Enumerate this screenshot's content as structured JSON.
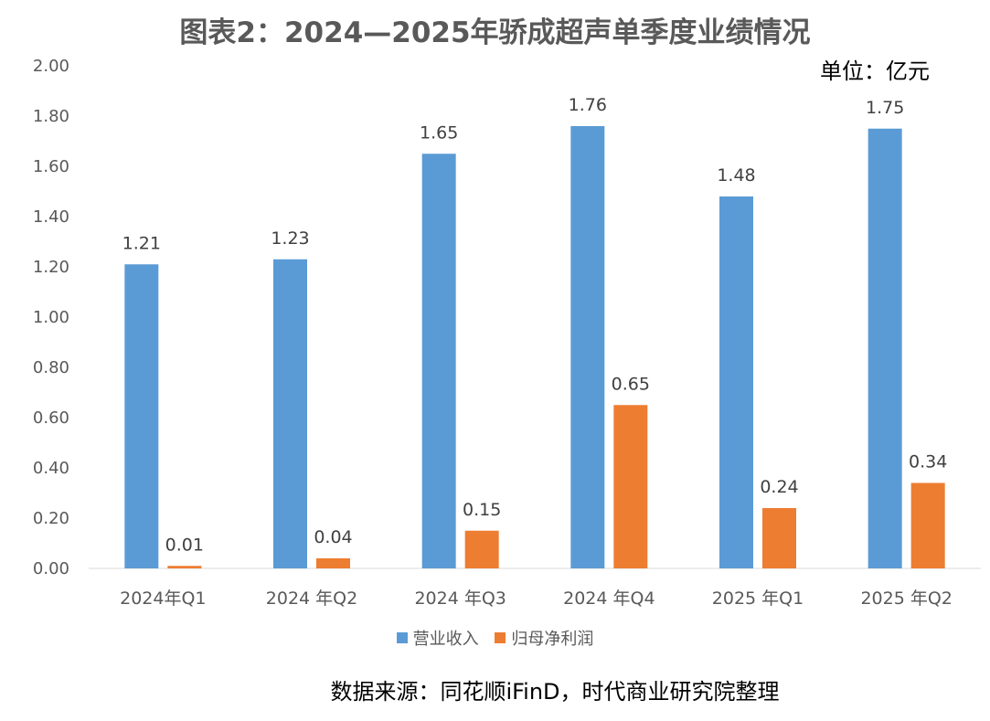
{
  "chart_data": {
    "type": "bar",
    "title": "图表2：2024—2025年骄成超声单季度业绩情况",
    "unit": "单位：亿元",
    "categories": [
      "2024年Q1",
      "2024 年Q2",
      "2024 年Q3",
      "2024 年Q4",
      "2025 年Q1",
      "2025 年Q2"
    ],
    "series": [
      {
        "name": "营业收入",
        "color": "#5B9BD5",
        "values": [
          1.21,
          1.23,
          1.65,
          1.76,
          1.48,
          1.75
        ],
        "labels": [
          "1.21",
          "1.23",
          "1.65",
          "1.76",
          "1.48",
          "1.75"
        ]
      },
      {
        "name": "归母净利润",
        "color": "#ED7D31",
        "values": [
          0.01,
          0.04,
          0.15,
          0.65,
          0.24,
          0.34
        ],
        "labels": [
          "0.01",
          "0.04",
          "0.15",
          "0.65",
          "0.24",
          "0.34"
        ]
      }
    ],
    "ylim": [
      0,
      2.0
    ],
    "yticks": [
      "0.00",
      "0.20",
      "0.40",
      "0.60",
      "0.80",
      "1.00",
      "1.20",
      "1.40",
      "1.60",
      "1.80",
      "2.00"
    ],
    "xlabel": "",
    "ylabel": "",
    "grid": false,
    "legend_position": "bottom"
  },
  "source": "数据来源：同花顺iFinD，时代商业研究院整理"
}
